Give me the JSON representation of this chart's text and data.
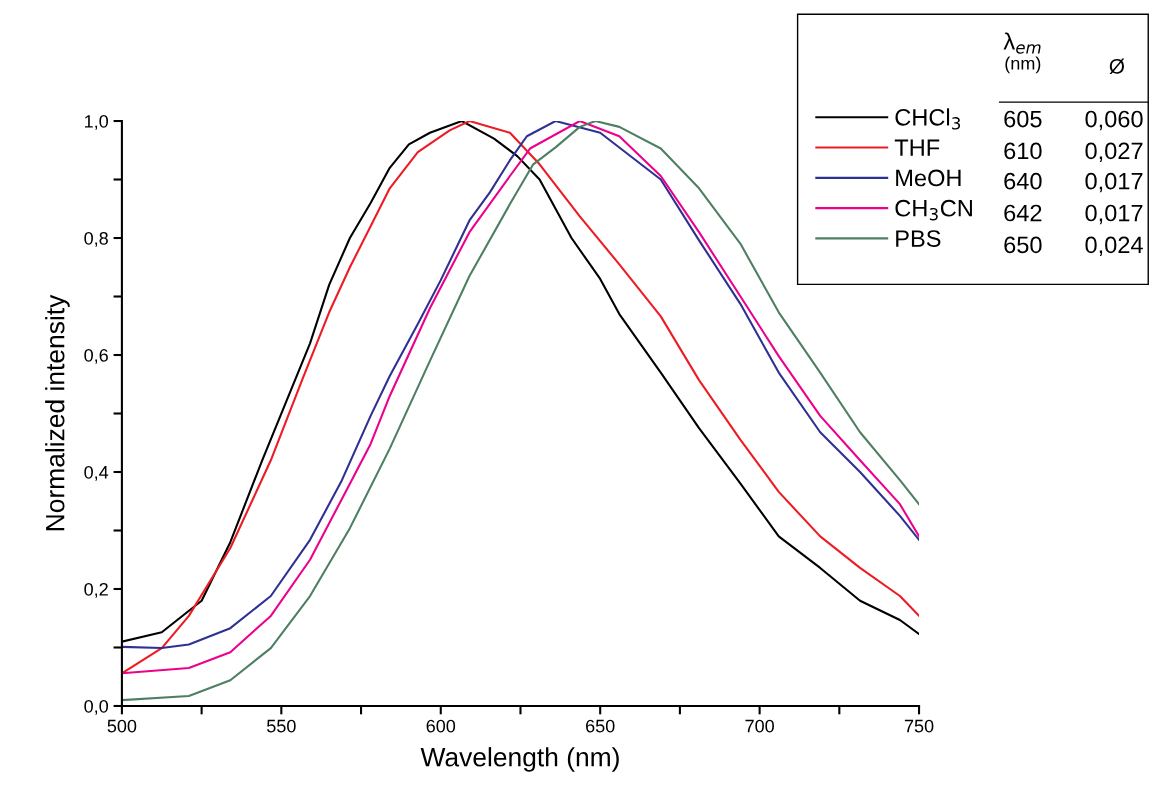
{
  "chart_data": {
    "type": "line",
    "xlabel": "Wavelength (nm)",
    "ylabel": "Normalized intensity",
    "xlim": [
      500,
      750
    ],
    "xticks": [
      500,
      {
        "value": 525,
        "label": null
      },
      550,
      {
        "value": 575,
        "label": null
      },
      600,
      {
        "value": 625,
        "label": null
      },
      650,
      {
        "value": 675,
        "label": null
      },
      700,
      {
        "value": 725,
        "label": null
      },
      750
    ],
    "ylim": [
      0,
      1
    ],
    "yticks": [
      {
        "value": 0,
        "label": "0,0"
      },
      {
        "value": 0.1,
        "label": null
      },
      {
        "value": 0.2,
        "label": "0,2"
      },
      {
        "value": 0.3,
        "label": null
      },
      {
        "value": 0.4,
        "label": "0,4"
      },
      {
        "value": 0.5,
        "label": null
      },
      {
        "value": 0.6,
        "label": "0,6"
      },
      {
        "value": 0.7,
        "label": null
      },
      {
        "value": 0.8,
        "label": "0,8"
      },
      {
        "value": 0.9,
        "label": null
      },
      {
        "value": 1.0,
        "label": "1,0"
      }
    ],
    "grid": false,
    "legend": "top right",
    "marker": "none",
    "line_style": "solid",
    "annotations": [
      "λ$_{em}$",
      "(nm)",
      "Ø",
      "605",
      "0,060",
      "610",
      "0,027",
      "640",
      "0,017",
      "642",
      "0,017",
      "650",
      "0,024"
    ],
    "series": [
      {
        "name": "CHCl$_{3}$",
        "color": "#000000",
        "x": [
          500,
          512.5,
          525,
          534,
          544,
          551.5,
          559,
          565,
          571.5,
          578,
          584,
          590,
          596.6,
          606.6,
          616.7,
          624,
          631,
          641,
          650,
          656,
          669,
          681,
          694,
          706,
          719,
          731.5,
          744,
          750
        ],
        "values": [
          0.11,
          0.126,
          0.18,
          0.28,
          0.42,
          0.52,
          0.62,
          0.72,
          0.8,
          0.86,
          0.92,
          0.96,
          0.98,
          1.0,
          0.97,
          0.94,
          0.9,
          0.8,
          0.73,
          0.67,
          0.57,
          0.475,
          0.38,
          0.29,
          0.236,
          0.18,
          0.147,
          0.123
        ]
      },
      {
        "name": "THF",
        "color": "#ed1c24",
        "x": [
          500,
          512.5,
          521,
          534,
          546.7,
          556.5,
          565,
          571.5,
          578,
          584,
          592.8,
          602.8,
          609,
          621.7,
          631,
          643.6,
          656,
          669,
          681,
          694,
          706,
          719,
          731.5,
          744,
          750
        ],
        "values": [
          0.056,
          0.099,
          0.154,
          0.27,
          0.42,
          0.557,
          0.673,
          0.75,
          0.82,
          0.885,
          0.947,
          0.984,
          1.0,
          0.98,
          0.926,
          0.837,
          0.755,
          0.666,
          0.557,
          0.455,
          0.366,
          0.29,
          0.236,
          0.188,
          0.154
        ]
      },
      {
        "name": "MeOH",
        "color": "#2e3192",
        "x": [
          500,
          512.5,
          521,
          534,
          546.7,
          559,
          569,
          578,
          584,
          592.8,
          600,
          609,
          615.4,
          621.7,
          627,
          636,
          650,
          669,
          681,
          694,
          706,
          719,
          731.5,
          744,
          750
        ],
        "values": [
          0.101,
          0.099,
          0.105,
          0.133,
          0.188,
          0.284,
          0.386,
          0.496,
          0.564,
          0.653,
          0.728,
          0.83,
          0.878,
          0.933,
          0.974,
          1.0,
          0.98,
          0.9,
          0.796,
          0.687,
          0.57,
          0.468,
          0.4,
          0.325,
          0.284
        ]
      },
      {
        "name": "CH$_{3}$CN",
        "color": "#ec008c",
        "x": [
          500,
          521,
          534,
          546.7,
          559,
          571.5,
          578,
          584,
          596.6,
          609,
          621.7,
          628,
          643.6,
          656,
          669,
          681,
          694,
          706,
          719,
          731.5,
          744,
          750
        ],
        "values": [
          0.056,
          0.065,
          0.092,
          0.154,
          0.25,
          0.38,
          0.448,
          0.53,
          0.68,
          0.81,
          0.906,
          0.953,
          1.0,
          0.974,
          0.906,
          0.81,
          0.7,
          0.598,
          0.496,
          0.42,
          0.345,
          0.29
        ]
      },
      {
        "name": "PBS",
        "color": "#4e7f63",
        "x": [
          500,
          521,
          534,
          546.7,
          559,
          571.5,
          584,
          596.6,
          609,
          621.7,
          629,
          636,
          643.6,
          648.5,
          656,
          669,
          681,
          694,
          706,
          719,
          731.5,
          744,
          750
        ],
        "values": [
          0.01,
          0.017,
          0.044,
          0.099,
          0.188,
          0.304,
          0.44,
          0.59,
          0.735,
          0.858,
          0.926,
          0.955,
          0.99,
          1.0,
          0.99,
          0.953,
          0.885,
          0.79,
          0.673,
          0.57,
          0.468,
          0.386,
          0.345
        ]
      }
    ]
  }
}
